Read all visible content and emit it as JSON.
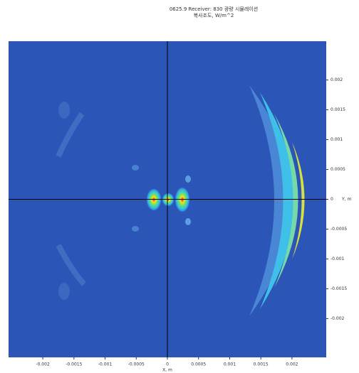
{
  "chart_data": {
    "type": "contour",
    "title": "0625.9 Receiver: 830 광량 시뮬레이션",
    "subtitle": "복사조도, W/m^2",
    "xlabel": "X, m",
    "ylabel": "Y, m",
    "xlim": [
      -0.00255,
      0.00255
    ],
    "ylim": [
      -0.00265,
      0.00265
    ],
    "xticks": [
      -0.002,
      -0.0015,
      -0.001,
      -0.0005,
      0,
      0.0005,
      0.001,
      0.0015,
      0.002
    ],
    "yticks": [
      0.002,
      0.0015,
      0.001,
      0.0005,
      0,
      -0.0005,
      -0.001,
      -0.0015,
      -0.002
    ],
    "background": "#2b55b6",
    "axis_lines": true
  }
}
